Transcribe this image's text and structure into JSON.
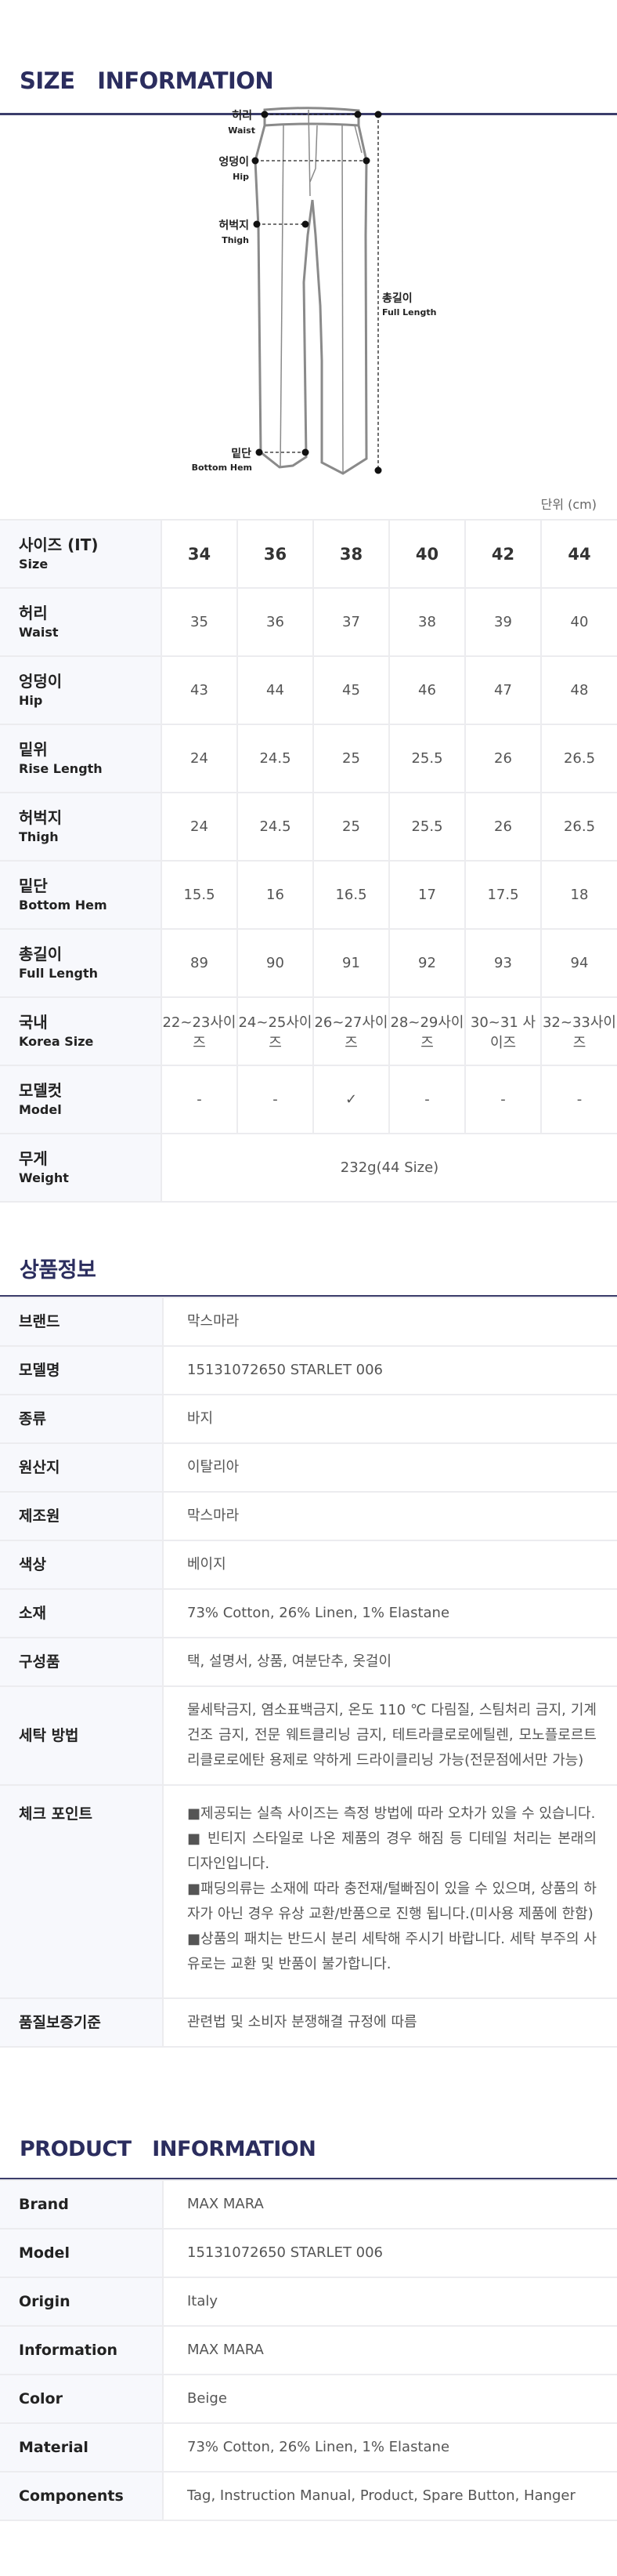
{
  "size_info": {
    "title": "SIZE   INFORMATION",
    "diagram_labels": [
      {
        "ko": "허리",
        "en": "Waist"
      },
      {
        "ko": "엉덩이",
        "en": "Hip"
      },
      {
        "ko": "허벅지",
        "en": "Thigh"
      },
      {
        "ko": "밑단",
        "en": "Bottom Hem"
      },
      {
        "ko": "총길이",
        "en": "Full Length"
      }
    ],
    "unit": "단위 (cm)",
    "header": {
      "ko": "사이즈 (IT)",
      "en": "Size",
      "sizes": [
        "34",
        "36",
        "38",
        "40",
        "42",
        "44"
      ]
    },
    "rows": [
      {
        "ko": "허리",
        "en": "Waist",
        "values": [
          "35",
          "36",
          "37",
          "38",
          "39",
          "40"
        ]
      },
      {
        "ko": "엉덩이",
        "en": "Hip",
        "values": [
          "43",
          "44",
          "45",
          "46",
          "47",
          "48"
        ]
      },
      {
        "ko": "밑위",
        "en": "Rise Length",
        "values": [
          "24",
          "24.5",
          "25",
          "25.5",
          "26",
          "26.5"
        ]
      },
      {
        "ko": "허벅지",
        "en": "Thigh",
        "values": [
          "24",
          "24.5",
          "25",
          "25.5",
          "26",
          "26.5"
        ]
      },
      {
        "ko": "밑단",
        "en": "Bottom Hem",
        "values": [
          "15.5",
          "16",
          "16.5",
          "17",
          "17.5",
          "18"
        ]
      },
      {
        "ko": "총길이",
        "en": "Full Length",
        "values": [
          "89",
          "90",
          "91",
          "92",
          "93",
          "94"
        ]
      },
      {
        "ko": "국내",
        "en": "Korea Size",
        "values": [
          "22~23사이즈",
          "24~25사이즈",
          "26~27사이즈",
          "28~29사이즈",
          "30~31 사이즈",
          "32~33사이즈"
        ]
      },
      {
        "ko": "모델컷",
        "en": "Model",
        "values": [
          "-",
          "-",
          "✓",
          "-",
          "-",
          "-"
        ]
      }
    ],
    "weight": {
      "ko": "무게",
      "en": "Weight",
      "value": "232g(44 Size)"
    }
  },
  "product_ko": {
    "title": "상품정보",
    "rows": [
      {
        "label": "브랜드",
        "value": "막스마라"
      },
      {
        "label": "모델명",
        "value": "15131072650   STARLET   006"
      },
      {
        "label": "종류",
        "value": "바지"
      },
      {
        "label": "원산지",
        "value": "이탈리아"
      },
      {
        "label": "제조원",
        "value": "막스마라"
      },
      {
        "label": "색상",
        "value": "베이지"
      },
      {
        "label": "소재",
        "value": "73% Cotton, 26% Linen, 1% Elastane"
      },
      {
        "label": "구성품",
        "value": "택, 설명서, 상품, 여분단추, 옷걸이"
      },
      {
        "label": "세탁 방법",
        "value": "물세탁금지, 염소표백금지, 온도 110 ℃ 다림질, 스팀처리 금지, 기계 건조 금지, 전문 웨트클리닝 금지, 테트라클로로에틸렌, 모노플로르트리클로로에탄 용제로 약하게 드라이클리닝 가능(전문점에서만 가능)"
      }
    ],
    "check_label": "체크 포인트",
    "check_points": [
      " ■제공되는 실측 사이즈는 측정 방법에 따라 오차가 있을 수 있습니다.",
      " ■ 빈티지 스타일로 나온 제품의 경우 해짐 등 디테일 처리는 본래의 디자인입니다.",
      " ■패딩의류는 소재에 따라 충전재/털빠짐이 있을 수 있으며, 상품의 하자가 아닌 경우 유상 교환/반품으로 진행 됩니다.(미사용 제품에 한함)",
      " ■상품의 패치는 반드시 분리 세탁해 주시기 바랍니다. 세탁 부주의 사유로는 교환 및 반품이 불가합니다."
    ],
    "quality": {
      "label": "품질보증기준",
      "value": "관련법 및 소비자 분쟁해결 규정에 따름"
    }
  },
  "product_en": {
    "title": "PRODUCT   INFORMATION",
    "rows": [
      {
        "label": "Brand",
        "value": "MAX MARA"
      },
      {
        "label": "Model",
        "value": "15131072650   STARLET   006"
      },
      {
        "label": "Origin",
        "value": "Italy"
      },
      {
        "label": "Information",
        "value": "MAX MARA"
      },
      {
        "label": "Color",
        "value": "Beige"
      },
      {
        "label": "Material",
        "value": "73% Cotton, 26% Linen, 1% Elastane"
      },
      {
        "label": "Components",
        "value": "Tag, Instruction Manual, Product, Spare Button, Hanger"
      }
    ]
  },
  "colors": {
    "title": "#2b2d5e",
    "label_bg": "#f7f8fc",
    "border": "#ececef",
    "outline": "#888888"
  }
}
